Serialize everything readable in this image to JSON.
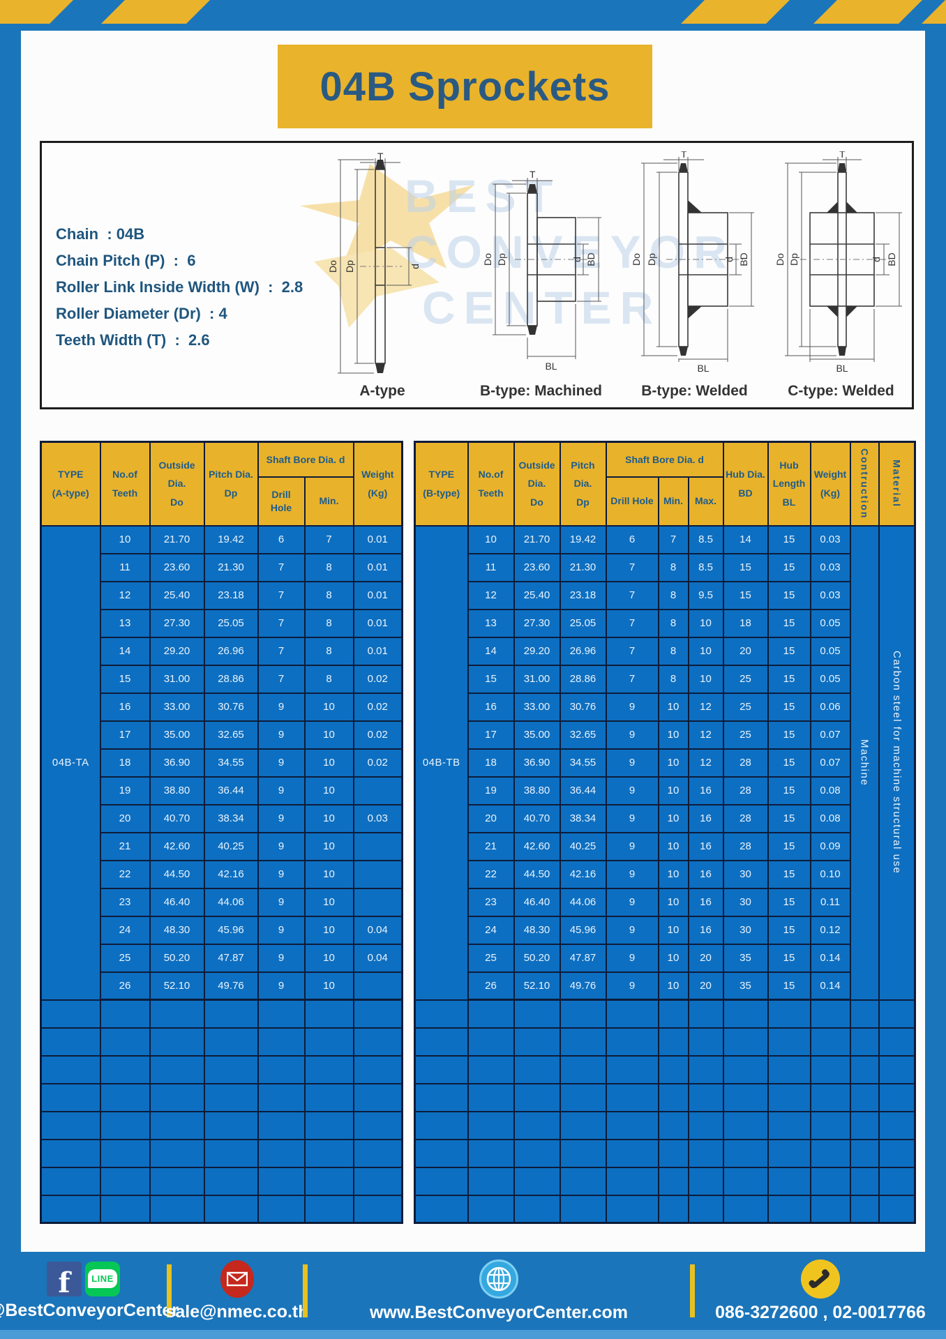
{
  "page": {
    "title": "04B Sprockets"
  },
  "specs": [
    "Chain  : 04B",
    "Chain Pitch (P)  :  6",
    "Roller Link Inside Width (W)  :  2.8",
    "Roller Diameter (Dr)  : 4",
    "Teeth Width (T)  :  2.6"
  ],
  "diagram": {
    "watermark": {
      "lines": [
        "BEST",
        "CONVEYOR",
        "CENTER"
      ]
    },
    "figures": [
      {
        "caption": "A-type",
        "labels": {
          "t": "T",
          "do": "Do",
          "dp": "Dp",
          "d": "d"
        }
      },
      {
        "caption": "B-type: Machined",
        "labels": {
          "t": "T",
          "do": "Do",
          "dp": "Dp",
          "d": "d",
          "bd": "BD",
          "bl": "BL"
        }
      },
      {
        "caption": "B-type: Welded",
        "labels": {
          "t": "T",
          "do": "Do",
          "dp": "Dp",
          "d": "d",
          "bd": "BD",
          "bl": "BL"
        }
      },
      {
        "caption": "C-type: Welded",
        "labels": {
          "t": "T",
          "do": "Do",
          "dp": "Dp",
          "d": "d",
          "bd": "BD",
          "bl": "BL"
        }
      }
    ]
  },
  "tableA": {
    "headers": {
      "type": "TYPE\n(A-type)",
      "teeth": "No.of\nTeeth",
      "outside": "Outside\nDia.\nDo",
      "pitch": "Pitch Dia.\nDp",
      "shaft_bore": "Shaft Bore Dia. d",
      "drill_hole": "Drill Hole",
      "min": "Min.",
      "weight": "Weight\n(Kg)"
    },
    "type_value": "04B-TA",
    "empty_rows": 8,
    "rows": [
      [
        "10",
        "21.70",
        "19.42",
        "6",
        "7",
        "0.01"
      ],
      [
        "11",
        "23.60",
        "21.30",
        "7",
        "8",
        "0.01"
      ],
      [
        "12",
        "25.40",
        "23.18",
        "7",
        "8",
        "0.01"
      ],
      [
        "13",
        "27.30",
        "25.05",
        "7",
        "8",
        "0.01"
      ],
      [
        "14",
        "29.20",
        "26.96",
        "7",
        "8",
        "0.01"
      ],
      [
        "15",
        "31.00",
        "28.86",
        "7",
        "8",
        "0.02"
      ],
      [
        "16",
        "33.00",
        "30.76",
        "9",
        "10",
        "0.02"
      ],
      [
        "17",
        "35.00",
        "32.65",
        "9",
        "10",
        "0.02"
      ],
      [
        "18",
        "36.90",
        "34.55",
        "9",
        "10",
        "0.02"
      ],
      [
        "19",
        "38.80",
        "36.44",
        "9",
        "10",
        ""
      ],
      [
        "20",
        "40.70",
        "38.34",
        "9",
        "10",
        "0.03"
      ],
      [
        "21",
        "42.60",
        "40.25",
        "9",
        "10",
        ""
      ],
      [
        "22",
        "44.50",
        "42.16",
        "9",
        "10",
        ""
      ],
      [
        "23",
        "46.40",
        "44.06",
        "9",
        "10",
        ""
      ],
      [
        "24",
        "48.30",
        "45.96",
        "9",
        "10",
        "0.04"
      ],
      [
        "25",
        "50.20",
        "47.87",
        "9",
        "10",
        "0.04"
      ],
      [
        "26",
        "52.10",
        "49.76",
        "9",
        "10",
        ""
      ]
    ]
  },
  "tableB": {
    "headers": {
      "type": "TYPE\n(B-type)",
      "teeth": "No.of\nTeeth",
      "outside": "Outside\nDia.\nDo",
      "pitch": "Pitch Dia.\nDp",
      "shaft_bore": "Shaft Bore Dia. d",
      "drill_hole": "Drill Hole",
      "min": "Min.",
      "max": "Max.",
      "hub_dia": "Hub Dia.\nBD",
      "hub_length": "Hub\nLength\nBL",
      "weight": "Weight\n(Kg)",
      "construction": "Contruction",
      "material": "Material"
    },
    "type_value": "04B-TB",
    "construction_value": "Machine",
    "material_value": "Carbon steel for machine structural use",
    "empty_rows": 8,
    "rows": [
      [
        "10",
        "21.70",
        "19.42",
        "6",
        "7",
        "8.5",
        "14",
        "15",
        "0.03"
      ],
      [
        "11",
        "23.60",
        "21.30",
        "7",
        "8",
        "8.5",
        "15",
        "15",
        "0.03"
      ],
      [
        "12",
        "25.40",
        "23.18",
        "7",
        "8",
        "9.5",
        "15",
        "15",
        "0.03"
      ],
      [
        "13",
        "27.30",
        "25.05",
        "7",
        "8",
        "10",
        "18",
        "15",
        "0.05"
      ],
      [
        "14",
        "29.20",
        "26.96",
        "7",
        "8",
        "10",
        "20",
        "15",
        "0.05"
      ],
      [
        "15",
        "31.00",
        "28.86",
        "7",
        "8",
        "10",
        "25",
        "15",
        "0.05"
      ],
      [
        "16",
        "33.00",
        "30.76",
        "9",
        "10",
        "12",
        "25",
        "15",
        "0.06"
      ],
      [
        "17",
        "35.00",
        "32.65",
        "9",
        "10",
        "12",
        "25",
        "15",
        "0.07"
      ],
      [
        "18",
        "36.90",
        "34.55",
        "9",
        "10",
        "12",
        "28",
        "15",
        "0.07"
      ],
      [
        "19",
        "38.80",
        "36.44",
        "9",
        "10",
        "16",
        "28",
        "15",
        "0.08"
      ],
      [
        "20",
        "40.70",
        "38.34",
        "9",
        "10",
        "16",
        "28",
        "15",
        "0.08"
      ],
      [
        "21",
        "42.60",
        "40.25",
        "9",
        "10",
        "16",
        "28",
        "15",
        "0.09"
      ],
      [
        "22",
        "44.50",
        "42.16",
        "9",
        "10",
        "16",
        "30",
        "15",
        "0.10"
      ],
      [
        "23",
        "46.40",
        "44.06",
        "9",
        "10",
        "16",
        "30",
        "15",
        "0.11"
      ],
      [
        "24",
        "48.30",
        "45.96",
        "9",
        "10",
        "16",
        "30",
        "15",
        "0.12"
      ],
      [
        "25",
        "50.20",
        "47.87",
        "9",
        "10",
        "20",
        "35",
        "15",
        "0.14"
      ],
      [
        "26",
        "52.10",
        "49.76",
        "9",
        "10",
        "20",
        "35",
        "15",
        "0.14"
      ]
    ]
  },
  "footer": {
    "facebook_letter": "f",
    "line_badge": "LINE",
    "social": "@BestConveyorCenter",
    "email": "sale@nmec.co.th",
    "website": "www.BestConveyorCenter.com",
    "phone": "086-3272600 , 02-0017766"
  },
  "colors": {
    "frame_blue": "#1b75ba",
    "cell_blue": "#0d6fc1",
    "header_yellow": "#e9b22b",
    "border_navy": "#0d1c3a",
    "text_navy": "#1d5c8c",
    "divider_yellow": "#e8c121",
    "facebook_blue": "#3b5998",
    "line_green": "#06c755",
    "mail_red": "#c5281c",
    "globe_blue": "#35a8e0",
    "phone_yellow": "#f0c41f",
    "bottom_strip": "#4a9bd6"
  }
}
